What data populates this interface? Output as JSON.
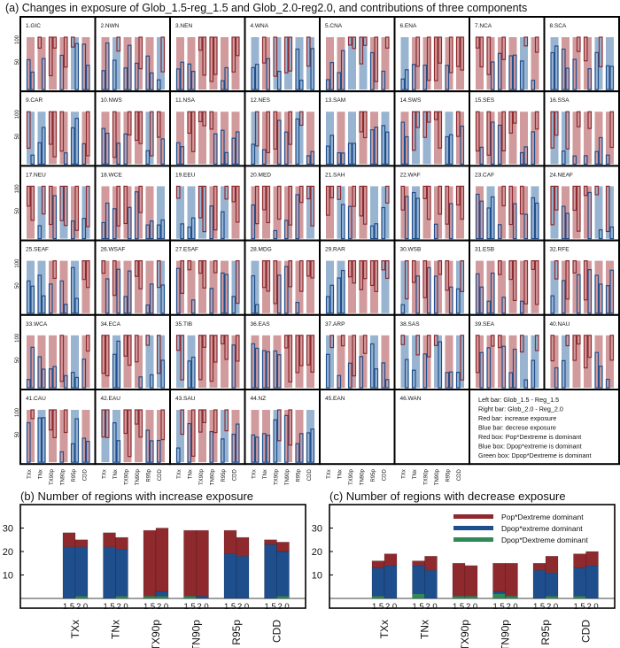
{
  "panel_a": {
    "title": "(a) Changes in exposure of Glob_1.5-reg_1.5 and Glob_2.0-reg2.0, and contributions of three components",
    "y_ticks": [
      "50",
      "100"
    ],
    "x_labels": [
      "TXx",
      "TNx",
      "TX90p",
      "TN90p",
      "R95p",
      "CDD"
    ],
    "regions": [
      "1.GIC",
      "2.NWN",
      "3.NEN",
      "4.WNA",
      "5.CNA",
      "6.ENA",
      "7.NCA",
      "8.SCA",
      "9.CAR",
      "10.NWS",
      "11.NSA",
      "12.NES",
      "13.SAM",
      "14.SWS",
      "15.SES",
      "16.SSA",
      "17.NEU",
      "18.WCE",
      "19.EEU",
      "20.MED",
      "21.SAH",
      "22.WAF",
      "23.CAF",
      "24.NEAF",
      "25.SEAF",
      "26.WSAF",
      "27.ESAF",
      "28.MDG",
      "29.RAR",
      "30.WSB",
      "31.ESB",
      "32.RFE",
      "33.WCA",
      "34.ECA",
      "35.TIB",
      "36.EAS",
      "37.ARP",
      "38.SAS",
      "39.SEA",
      "40.NAU",
      "41.CAU",
      "42.EAU",
      "43.SAU",
      "44.NZ",
      "45.EAN",
      "46.WAN"
    ],
    "legend": [
      "Left  bar: Glob_1.5 - Reg_1.5",
      "Right bar: Glob_2.0 - Reg_2.0",
      "Red  bar: increase exposure",
      "Blue  bar: decrese exposure",
      "Red box: Pop*Dextreme is dominant",
      "Blue box: Dpop*extreme is dominant",
      "Green box: Dpop*Dextreme is dominant"
    ]
  },
  "colors": {
    "red": "#8e2a2e",
    "blue": "#1f4e8c",
    "green": "#2f8a57",
    "light_red": "#c98a8c",
    "light_blue": "#86a7c9"
  },
  "chart_data": [
    {
      "type": "bar",
      "title": "(b) Number of regions with increase exposure",
      "categories": [
        "TXx",
        "TNx",
        "TX90p",
        "TN90p",
        "R95p",
        "CDD"
      ],
      "sub_categories": [
        "1.5",
        "2.0"
      ],
      "yticks": [
        10,
        20,
        30
      ],
      "ylim": [
        0,
        38
      ],
      "stacked": true,
      "series": [
        {
          "name": "Dpop*Dextreme dominant",
          "color": "#2f8a57",
          "values": [
            [
              0,
              1
            ],
            [
              0,
              1
            ],
            [
              1,
              1
            ],
            [
              1,
              0
            ],
            [
              0,
              0
            ],
            [
              0,
              1
            ]
          ]
        },
        {
          "name": "Dpop*extreme dominant",
          "color": "#1f4e8c",
          "values": [
            [
              22,
              21
            ],
            [
              22,
              20
            ],
            [
              0,
              2
            ],
            [
              0,
              1
            ],
            [
              19,
              18
            ],
            [
              23,
              19
            ]
          ]
        },
        {
          "name": "Pop*Dextreme dominant",
          "color": "#8e2a2e",
          "values": [
            [
              6,
              3
            ],
            [
              6,
              5
            ],
            [
              28,
              27
            ],
            [
              28,
              28
            ],
            [
              10,
              8
            ],
            [
              2,
              4
            ]
          ]
        }
      ]
    },
    {
      "type": "bar",
      "title": "(c) Number of regions with decrease exposure",
      "categories": [
        "TXx",
        "TNx",
        "TX90p",
        "TN90p",
        "R95p",
        "CDD"
      ],
      "sub_categories": [
        "1.5",
        "2.0"
      ],
      "yticks": [
        10,
        20,
        30
      ],
      "ylim": [
        0,
        38
      ],
      "stacked": true,
      "legend": [
        "Pop*Dextreme dominant",
        "Dpop*extreme dominant",
        "Dpop*Dextreme dominant"
      ],
      "series": [
        {
          "name": "Dpop*Dextreme dominant",
          "color": "#2f8a57",
          "values": [
            [
              1,
              0
            ],
            [
              2,
              0
            ],
            [
              1,
              1
            ],
            [
              2,
              1
            ],
            [
              0,
              1
            ],
            [
              1,
              0
            ]
          ]
        },
        {
          "name": "Dpop*extreme dominant",
          "color": "#1f4e8c",
          "values": [
            [
              12,
              14
            ],
            [
              12,
              12
            ],
            [
              0,
              0
            ],
            [
              1,
              0
            ],
            [
              12,
              10
            ],
            [
              12,
              14
            ]
          ]
        },
        {
          "name": "Pop*Dextreme dominant",
          "color": "#8e2a2e",
          "values": [
            [
              3,
              5
            ],
            [
              2,
              6
            ],
            [
              14,
              13
            ],
            [
              12,
              14
            ],
            [
              3,
              7
            ],
            [
              6,
              6
            ]
          ]
        }
      ]
    }
  ]
}
